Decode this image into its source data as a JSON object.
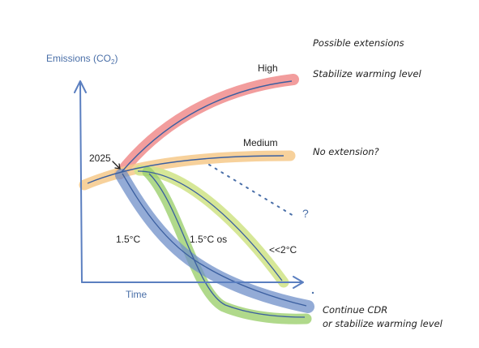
{
  "y_axis_label": "Emissions (CO",
  "y_axis_label_sub": "2",
  "y_axis_label_end": ")",
  "x_axis_label": "Time",
  "labels": {
    "start_year": "2025",
    "high": "High",
    "medium": "Medium",
    "p15": "1.5°C",
    "p15os": "1.5°C os",
    "lt2": "<<2°C",
    "question": "?"
  },
  "notes": {
    "header": "Possible extensions",
    "high": "Stabilize warming level",
    "medium": "No extension?",
    "low_line1": "Continue CDR",
    "low_line2": "or stabilize warming level"
  },
  "colors": {
    "axis": "#4a6fa8",
    "line": "#3b5fa0",
    "high": "#f08c8c",
    "medium": "#f6c98a",
    "low": "#6f8fc8",
    "green": "#9cd06e",
    "lt2": "#d2e48c"
  }
}
